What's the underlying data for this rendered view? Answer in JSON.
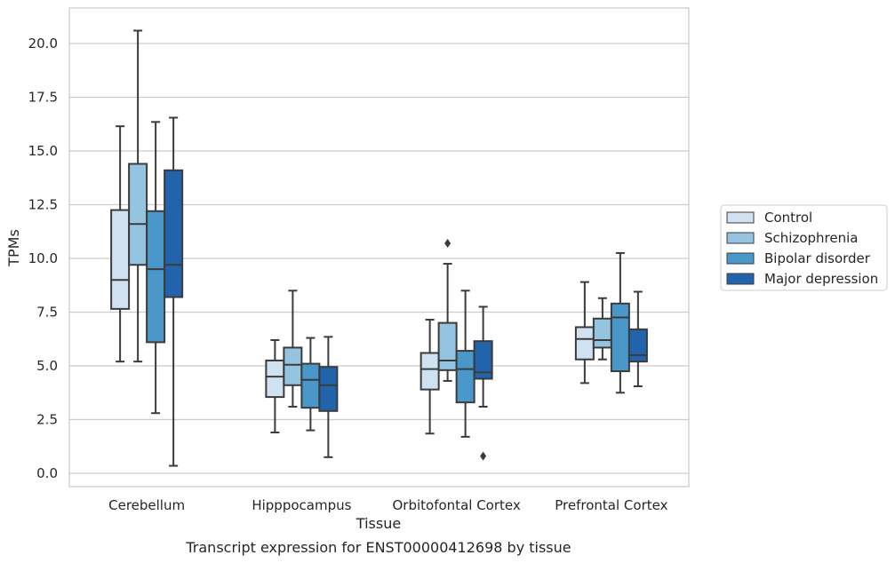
{
  "chart_data": {
    "type": "boxplot",
    "caption": "Transcript expression for ENST00000412698 by tissue",
    "xlabel": "Tissue",
    "ylabel": "TPMs",
    "ylim": [
      -0.6,
      21.6
    ],
    "yticks": [
      0.0,
      2.5,
      5.0,
      7.5,
      10.0,
      12.5,
      15.0,
      17.5,
      20.0
    ],
    "ytick_labels": [
      "0.0",
      "2.5",
      "5.0",
      "7.5",
      "10.0",
      "12.5",
      "15.0",
      "17.5",
      "20.0"
    ],
    "grid": "horizontal",
    "legend_position": "right",
    "categories": [
      "Cerebellum",
      "Hipppocampus",
      "Orbitofontal Cortex",
      "Prefrontal Cortex"
    ],
    "series": [
      {
        "name": "Control",
        "color": "#d0e1f2",
        "boxes": [
          {
            "whislo": 5.2,
            "q1": 7.65,
            "med": 9.0,
            "q3": 12.25,
            "whishi": 16.15,
            "fliers": []
          },
          {
            "whislo": 1.9,
            "q1": 3.55,
            "med": 4.5,
            "q3": 5.25,
            "whishi": 6.2,
            "fliers": []
          },
          {
            "whislo": 1.85,
            "q1": 3.9,
            "med": 4.85,
            "q3": 5.6,
            "whishi": 7.15,
            "fliers": []
          },
          {
            "whislo": 4.2,
            "q1": 5.3,
            "med": 6.25,
            "q3": 6.8,
            "whishi": 8.9,
            "fliers": []
          }
        ]
      },
      {
        "name": "Schizophrenia",
        "color": "#94c4df",
        "boxes": [
          {
            "whislo": 5.2,
            "q1": 9.7,
            "med": 11.6,
            "q3": 14.4,
            "whishi": 20.6,
            "fliers": []
          },
          {
            "whislo": 3.1,
            "q1": 4.1,
            "med": 5.05,
            "q3": 5.85,
            "whishi": 8.5,
            "fliers": []
          },
          {
            "whislo": 4.3,
            "q1": 4.8,
            "med": 5.25,
            "q3": 7.0,
            "whishi": 9.75,
            "fliers": [
              10.7
            ]
          },
          {
            "whislo": 5.3,
            "q1": 5.85,
            "med": 6.2,
            "q3": 7.2,
            "whishi": 8.15,
            "fliers": []
          }
        ]
      },
      {
        "name": "Bipolar disorder",
        "color": "#4a98c9",
        "boxes": [
          {
            "whislo": 2.8,
            "q1": 6.1,
            "med": 9.5,
            "q3": 12.2,
            "whishi": 16.35,
            "fliers": []
          },
          {
            "whislo": 2.0,
            "q1": 3.05,
            "med": 4.35,
            "q3": 5.1,
            "whishi": 6.3,
            "fliers": []
          },
          {
            "whislo": 1.7,
            "q1": 3.3,
            "med": 4.85,
            "q3": 5.7,
            "whishi": 8.5,
            "fliers": []
          },
          {
            "whislo": 3.75,
            "q1": 4.75,
            "med": 7.25,
            "q3": 7.9,
            "whishi": 10.25,
            "fliers": []
          }
        ]
      },
      {
        "name": "Major depression",
        "color": "#2164ab",
        "boxes": [
          {
            "whislo": 0.35,
            "q1": 8.2,
            "med": 9.7,
            "q3": 14.1,
            "whishi": 16.55,
            "fliers": []
          },
          {
            "whislo": 0.75,
            "q1": 2.9,
            "med": 4.1,
            "q3": 4.95,
            "whishi": 6.35,
            "fliers": []
          },
          {
            "whislo": 3.1,
            "q1": 4.4,
            "med": 4.7,
            "q3": 6.15,
            "whishi": 7.75,
            "fliers": [
              0.8
            ]
          },
          {
            "whislo": 4.05,
            "q1": 5.2,
            "med": 5.5,
            "q3": 6.7,
            "whishi": 8.45,
            "fliers": []
          }
        ]
      }
    ]
  }
}
